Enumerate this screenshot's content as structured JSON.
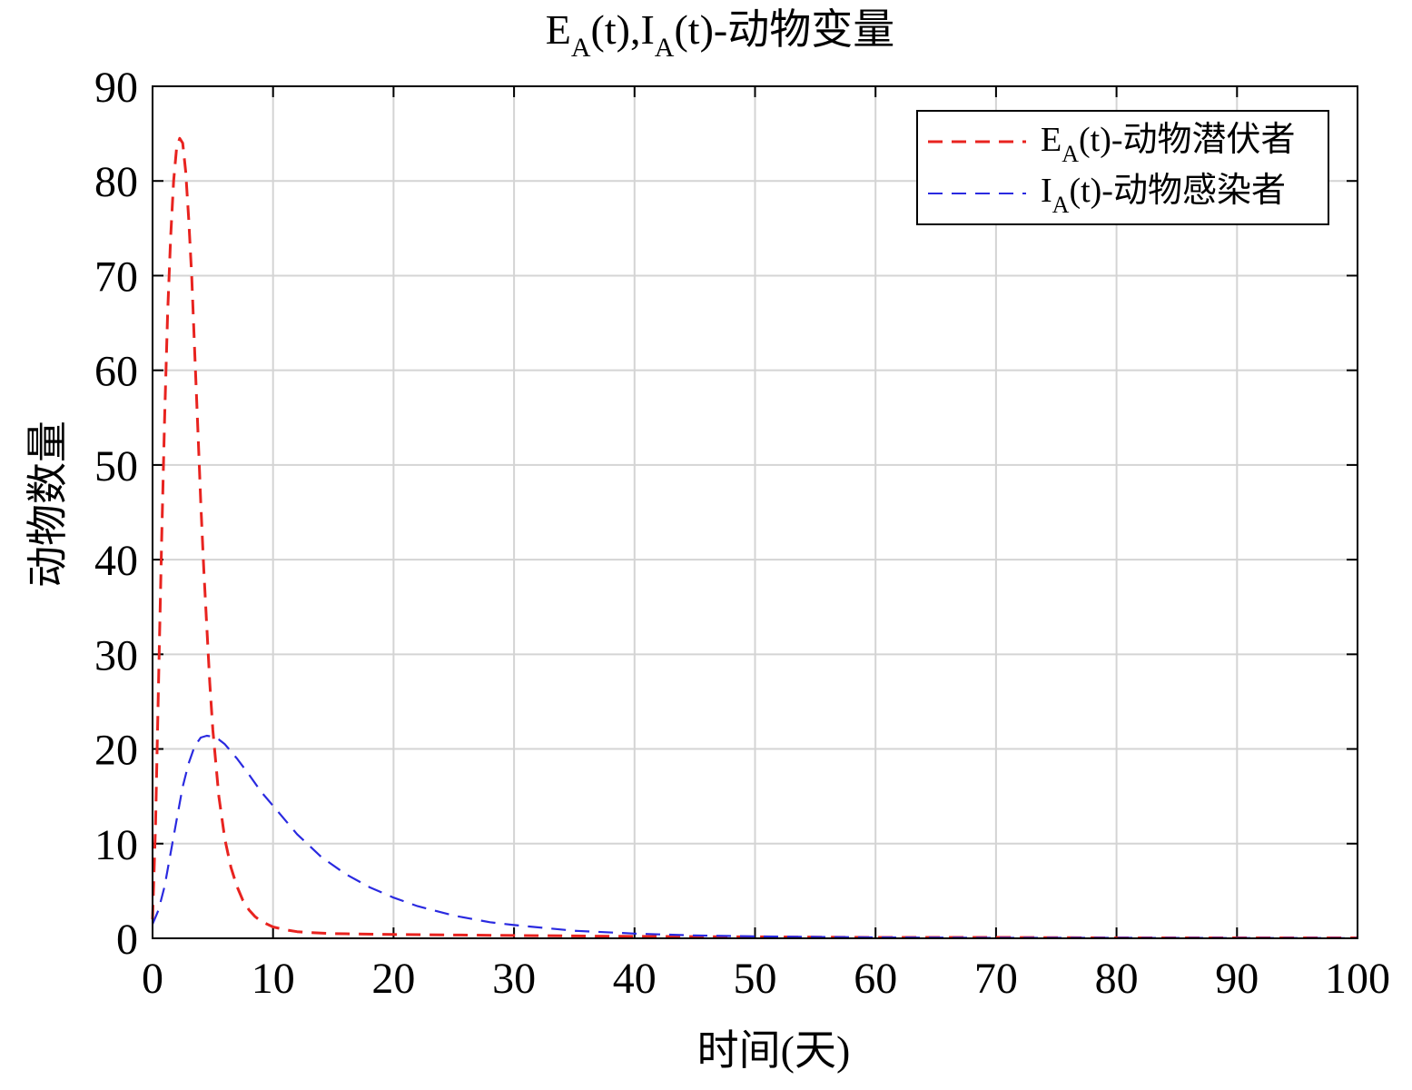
{
  "chart_data": {
    "type": "line",
    "title": "E",
    "title_sub1": "A",
    "title_mid": "(t),I",
    "title_sub2": "A",
    "title_end": "(t)-动物变量",
    "xlabel": "时间(天)",
    "ylabel": "动物数量",
    "xlim": [
      0,
      100
    ],
    "ylim": [
      0,
      90
    ],
    "xticks": [
      0,
      10,
      20,
      30,
      40,
      50,
      60,
      70,
      80,
      90,
      100
    ],
    "yticks": [
      0,
      10,
      20,
      30,
      40,
      50,
      60,
      70,
      80,
      90
    ],
    "grid": true,
    "legend_position": "top-right",
    "series": [
      {
        "name": "E",
        "name_sub": "A",
        "name_rest": "(t)-动物潜伏者",
        "color": "#e8231f",
        "style": "dashed",
        "x": [
          0,
          0.25,
          0.5,
          0.75,
          1.0,
          1.25,
          1.5,
          1.75,
          2.0,
          2.25,
          2.5,
          2.75,
          3.0,
          3.25,
          3.5,
          3.75,
          4.0,
          4.25,
          4.5,
          4.75,
          5.0,
          5.5,
          6.0,
          6.5,
          7.0,
          7.5,
          8.0,
          8.5,
          9.0,
          10,
          11,
          12,
          13,
          15,
          20,
          30,
          40,
          50,
          60,
          70,
          80,
          90,
          100
        ],
        "y": [
          2,
          12,
          27,
          42,
          55,
          66,
          74,
          80,
          83.5,
          84.5,
          84,
          81,
          76,
          70,
          62,
          54,
          46,
          39,
          33,
          27,
          22,
          15,
          10.5,
          7.5,
          5.5,
          4.0,
          3.0,
          2.3,
          1.8,
          1.2,
          0.9,
          0.7,
          0.6,
          0.5,
          0.4,
          0.3,
          0.2,
          0.15,
          0.1,
          0.1,
          0.05,
          0.05,
          0.05
        ]
      },
      {
        "name": "I",
        "name_sub": "A",
        "name_rest": "(t)-动物感染者",
        "color": "#2a2ae0",
        "style": "dashed",
        "x": [
          0,
          0.5,
          1.0,
          1.5,
          2.0,
          2.5,
          3.0,
          3.5,
          4.0,
          4.5,
          5.0,
          5.5,
          6.0,
          7.0,
          8.0,
          9.0,
          10,
          12,
          14,
          16,
          18,
          20,
          22,
          25,
          28,
          30,
          35,
          40,
          45,
          50,
          60,
          70,
          80,
          90,
          100
        ],
        "y": [
          1.5,
          3,
          5.5,
          9,
          12.5,
          16,
          18.5,
          20.3,
          21.2,
          21.4,
          21.3,
          21,
          20.5,
          19,
          17.3,
          15.5,
          14,
          11,
          8.6,
          6.8,
          5.4,
          4.3,
          3.4,
          2.4,
          1.7,
          1.4,
          0.8,
          0.5,
          0.3,
          0.2,
          0.1,
          0.05,
          0.05,
          0.03,
          0.02
        ]
      }
    ]
  }
}
